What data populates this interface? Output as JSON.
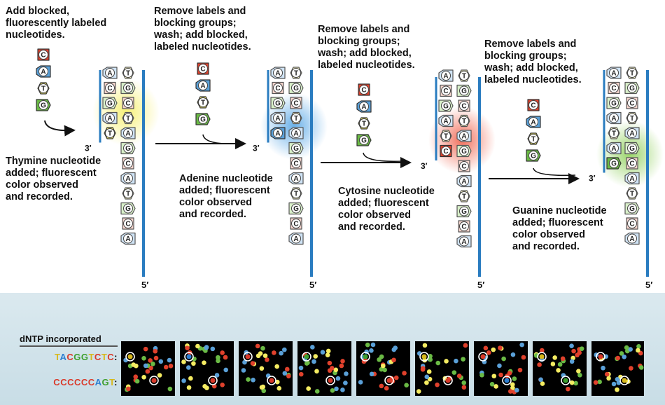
{
  "colors": {
    "A": "#5aa0d8",
    "T": "#f5ec62",
    "C": "#e0412c",
    "G": "#6aba45",
    "strand": "#2a7cc0",
    "glow_T": "#f6ef6a",
    "glow_A": "#5aa8e6",
    "glow_C": "#f0604a",
    "glow_G": "#8fd05a"
  },
  "panels": [
    {
      "top_label": "Add blocked,\nfluorescently labeled\nnucleotides.",
      "base_label": "Thymine nucleotide\nadded; fluorescent\ncolor observed\nand recorded.",
      "added": "T"
    },
    {
      "top_label": "Remove labels and\nblocking groups;\nwash; add blocked,\nlabeled nucleotides.",
      "base_label": "Adenine nucleotide\nadded; fluorescent\ncolor observed\nand recorded.",
      "added": "A"
    },
    {
      "top_label": "Remove labels and\nblocking groups;\nwash; add blocked,\nlabeled nucleotides.",
      "base_label": "Cytosine nucleotide\nadded; fluorescent\ncolor observed\nand recorded.",
      "added": "C"
    },
    {
      "top_label": "Remove labels and\nblocking groups;\nwash; add blocked,\nlabeled nucleotides.",
      "base_label": "Guanine nucleotide\nadded; fluorescent\ncolor observed\nand recorded.",
      "added": "G"
    }
  ],
  "free_nucleotides": [
    "C",
    "A",
    "T",
    "G"
  ],
  "template_bases": [
    "T",
    "G",
    "C",
    "T",
    "A",
    "G",
    "C",
    "A",
    "T",
    "G",
    "C",
    "A"
  ],
  "paired_bases": [
    "A",
    "C",
    "G",
    "A",
    "T"
  ],
  "end_labels": {
    "three_prime": "3′",
    "five_prime": "5′"
  },
  "bottom": {
    "title": "dNTP incorporated",
    "row1_letters": [
      "T",
      "A",
      "C",
      "G",
      "G",
      "T",
      "C",
      "T",
      "C"
    ],
    "row1_suffix": ":",
    "row2_letters": [
      "C",
      "C",
      "C",
      "C",
      "C",
      "C",
      "A",
      "G",
      "T"
    ],
    "row2_suffix": ":",
    "frames": 9
  }
}
